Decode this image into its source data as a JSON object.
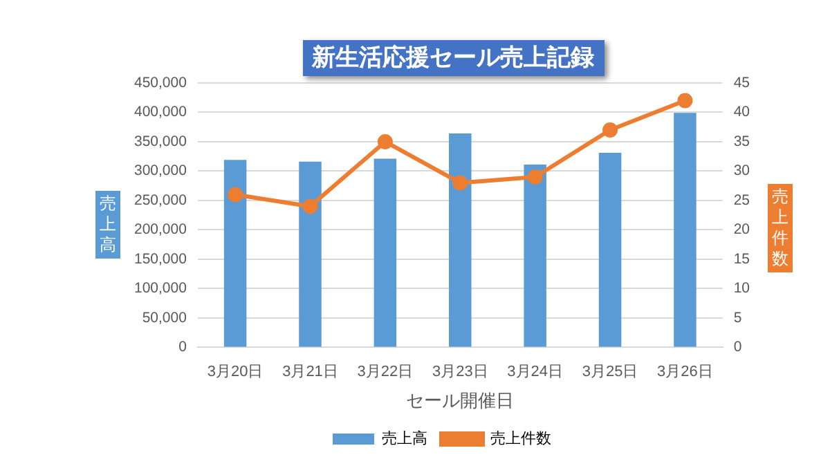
{
  "chart_data": {
    "type": "bar",
    "title": "新生活応援セール売上記録",
    "xlabel": "セール開催日",
    "ylabel": "売上高",
    "y2label": "売上件数",
    "categories": [
      "3月20日",
      "3月21日",
      "3月22日",
      "3月23日",
      "3月24日",
      "3月25日",
      "3月26日"
    ],
    "series": [
      {
        "name": "売上高",
        "color": "#5b9bd5",
        "values": [
          319000,
          316000,
          321000,
          364000,
          311000,
          331000,
          399000
        ]
      },
      {
        "name": "売上件数",
        "type": "line",
        "axis": "y2",
        "color": "#ed7d31",
        "marker": "circle",
        "values": [
          26,
          24,
          35,
          28,
          29,
          37,
          42
        ]
      }
    ],
    "ylim": [
      0,
      450000
    ],
    "yticks": [
      0,
      {
        "value": 50000,
        "label": "50,000"
      },
      {
        "value": 100000,
        "label": "100,000"
      },
      {
        "value": 150000,
        "label": "150,000"
      },
      {
        "value": 200000,
        "label": "200,000"
      },
      {
        "value": 250000,
        "label": "250,000"
      },
      {
        "value": 300000,
        "label": "300,000"
      },
      {
        "value": 350000,
        "label": "350,000"
      },
      {
        "value": 400000,
        "label": "400,000"
      },
      {
        "value": 450000,
        "label": "450,000"
      }
    ],
    "y2lim": [
      0,
      45
    ],
    "y2ticks": [
      0,
      5,
      10,
      15,
      20,
      25,
      30,
      35,
      40,
      45
    ],
    "grid": "y",
    "legend": "bottom"
  }
}
